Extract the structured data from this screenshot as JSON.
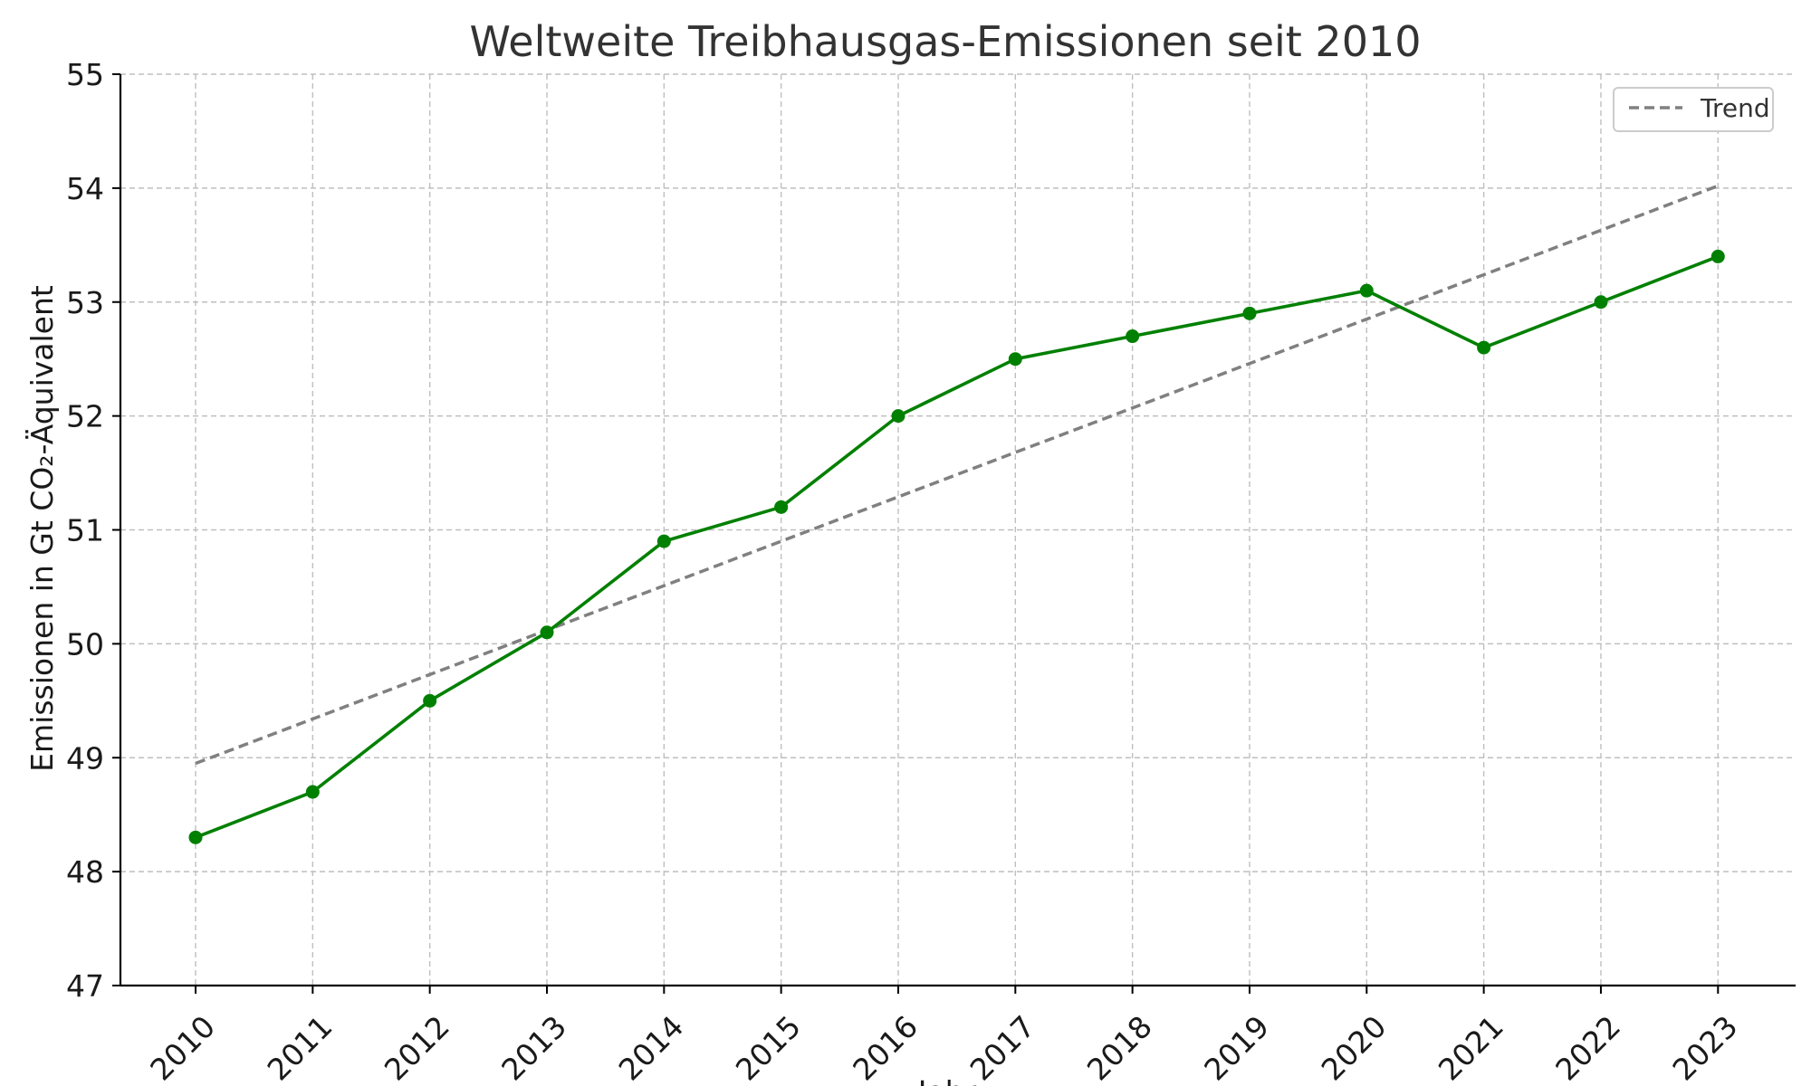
{
  "chart_data": {
    "type": "line",
    "title": "Weltweite Treibhausgas-Emissionen seit 2010",
    "xlabel": "Jahr",
    "ylabel": "Emissionen in Gt CO₂-Äquivalent",
    "x": [
      2010,
      2011,
      2012,
      2013,
      2014,
      2015,
      2016,
      2017,
      2018,
      2019,
      2020,
      2021,
      2022,
      2023
    ],
    "ylim": [
      47,
      55
    ],
    "yticks": [
      47,
      48,
      49,
      50,
      51,
      52,
      53,
      54,
      55
    ],
    "grid": true,
    "legend_position": "top-right",
    "series": [
      {
        "values": [
          48.3,
          48.7,
          49.5,
          50.1,
          50.9,
          51.2,
          52.0,
          52.5,
          52.7,
          52.9,
          53.1,
          52.6,
          53.0,
          53.4
        ],
        "color": "#008000",
        "style": "solid",
        "markers": true
      },
      {
        "name": "Trend",
        "start": [
          2010,
          48.95
        ],
        "end": [
          2023,
          54.02
        ],
        "color": "#808080",
        "style": "dashed",
        "markers": false
      }
    ]
  }
}
